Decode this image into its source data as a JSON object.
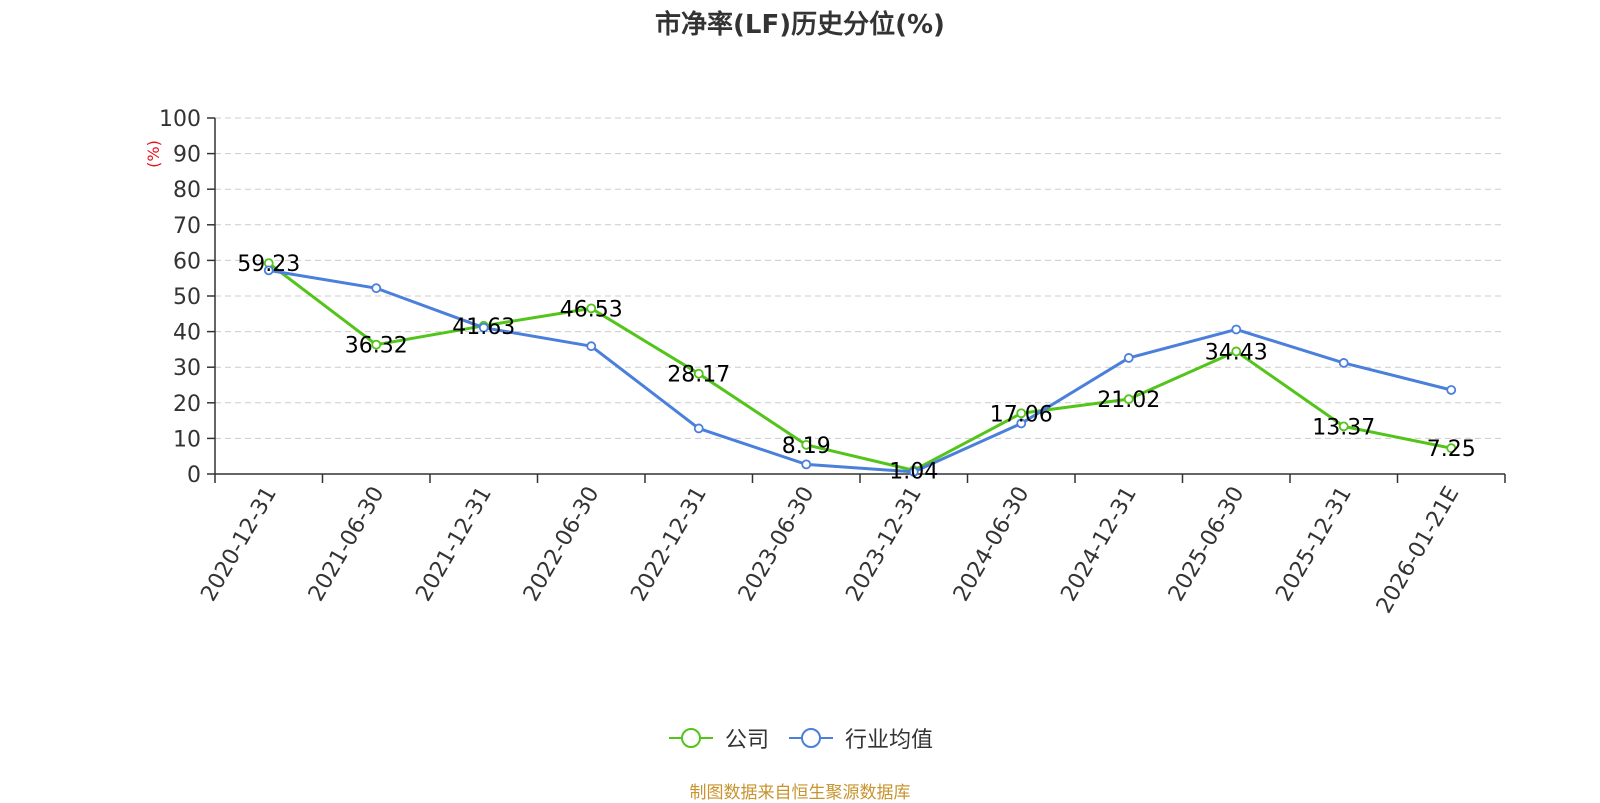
{
  "chart_data": {
    "type": "line",
    "title": "市净率(LF)历史分位(%)",
    "ylabel": "(%)",
    "xlabel": "",
    "ylim": [
      0,
      100
    ],
    "yticks": [
      "0",
      "10",
      "20",
      "30",
      "40",
      "50",
      "60",
      "70",
      "80",
      "90",
      "100"
    ],
    "grid": true,
    "legend_position": "bottom",
    "categories": [
      "2020-12-31",
      "2021-06-30",
      "2021-12-31",
      "2022-06-30",
      "2022-12-31",
      "2023-06-30",
      "2023-12-31",
      "2024-06-30",
      "2024-12-31",
      "2025-06-30",
      "2025-12-31",
      "2026-01-21E"
    ],
    "series": [
      {
        "name": "公司",
        "color": "#52c41a",
        "values": [
          59.23,
          36.32,
          41.63,
          46.53,
          28.17,
          8.19,
          1.04,
          17.06,
          21.02,
          34.43,
          13.37,
          7.25
        ],
        "labels": [
          "59.23",
          "36.32",
          "41.63",
          "46.53",
          "28.17",
          "8.19",
          "1.04",
          "17.06",
          "21.02",
          "34.43",
          "13.37",
          "7.25"
        ]
      },
      {
        "name": "行业均值",
        "color": "#4a7fdc",
        "values": [
          57.2,
          52.2,
          41.1,
          35.9,
          12.8,
          2.7,
          0.6,
          14.2,
          32.6,
          40.6,
          31.2,
          23.6
        ]
      }
    ]
  },
  "footer": {
    "source": "制图数据来自恒生聚源数据库"
  }
}
